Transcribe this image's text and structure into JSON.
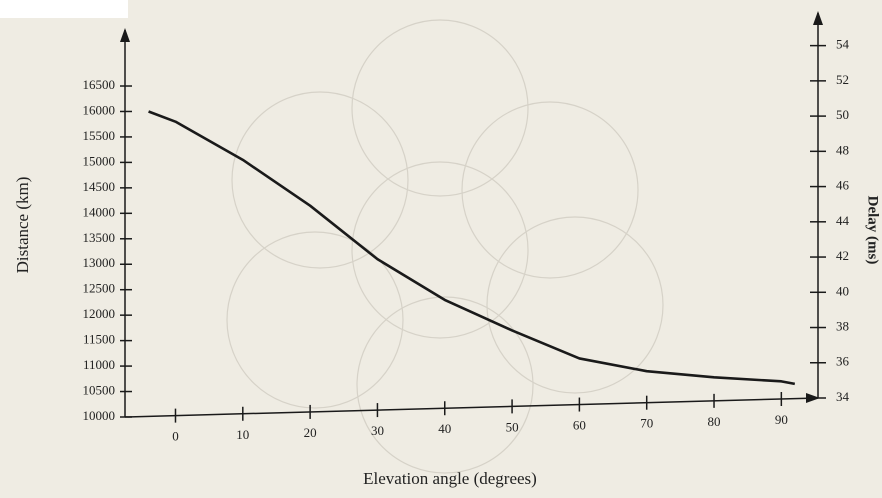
{
  "chart_data": {
    "type": "line",
    "x": [
      -4,
      0,
      10,
      20,
      30,
      40,
      50,
      60,
      70,
      80,
      90,
      92
    ],
    "series": [
      {
        "color": "#1a1a1a",
        "values": [
          16000,
          15800,
          15050,
          14150,
          13100,
          12300,
          11700,
          11150,
          10900,
          10780,
          10700,
          10650
        ]
      }
    ],
    "xlabel": "Elevation angle (degrees)",
    "ylabel": "Distance (km)",
    "y2label": "Delay (ms)",
    "xlim": [
      -7.5,
      95
    ],
    "xticks": [
      0,
      10,
      20,
      30,
      40,
      50,
      60,
      70,
      80,
      90
    ],
    "ylim": [
      10000,
      17600
    ],
    "yticks": [
      10000,
      10500,
      11000,
      11500,
      12000,
      12500,
      13000,
      13500,
      14000,
      14500,
      15000,
      15500,
      16000,
      16500
    ],
    "y2lim": [
      34,
      55
    ],
    "y2ticks": [
      34,
      36,
      38,
      40,
      42,
      44,
      46,
      48,
      50,
      52,
      54
    ]
  }
}
